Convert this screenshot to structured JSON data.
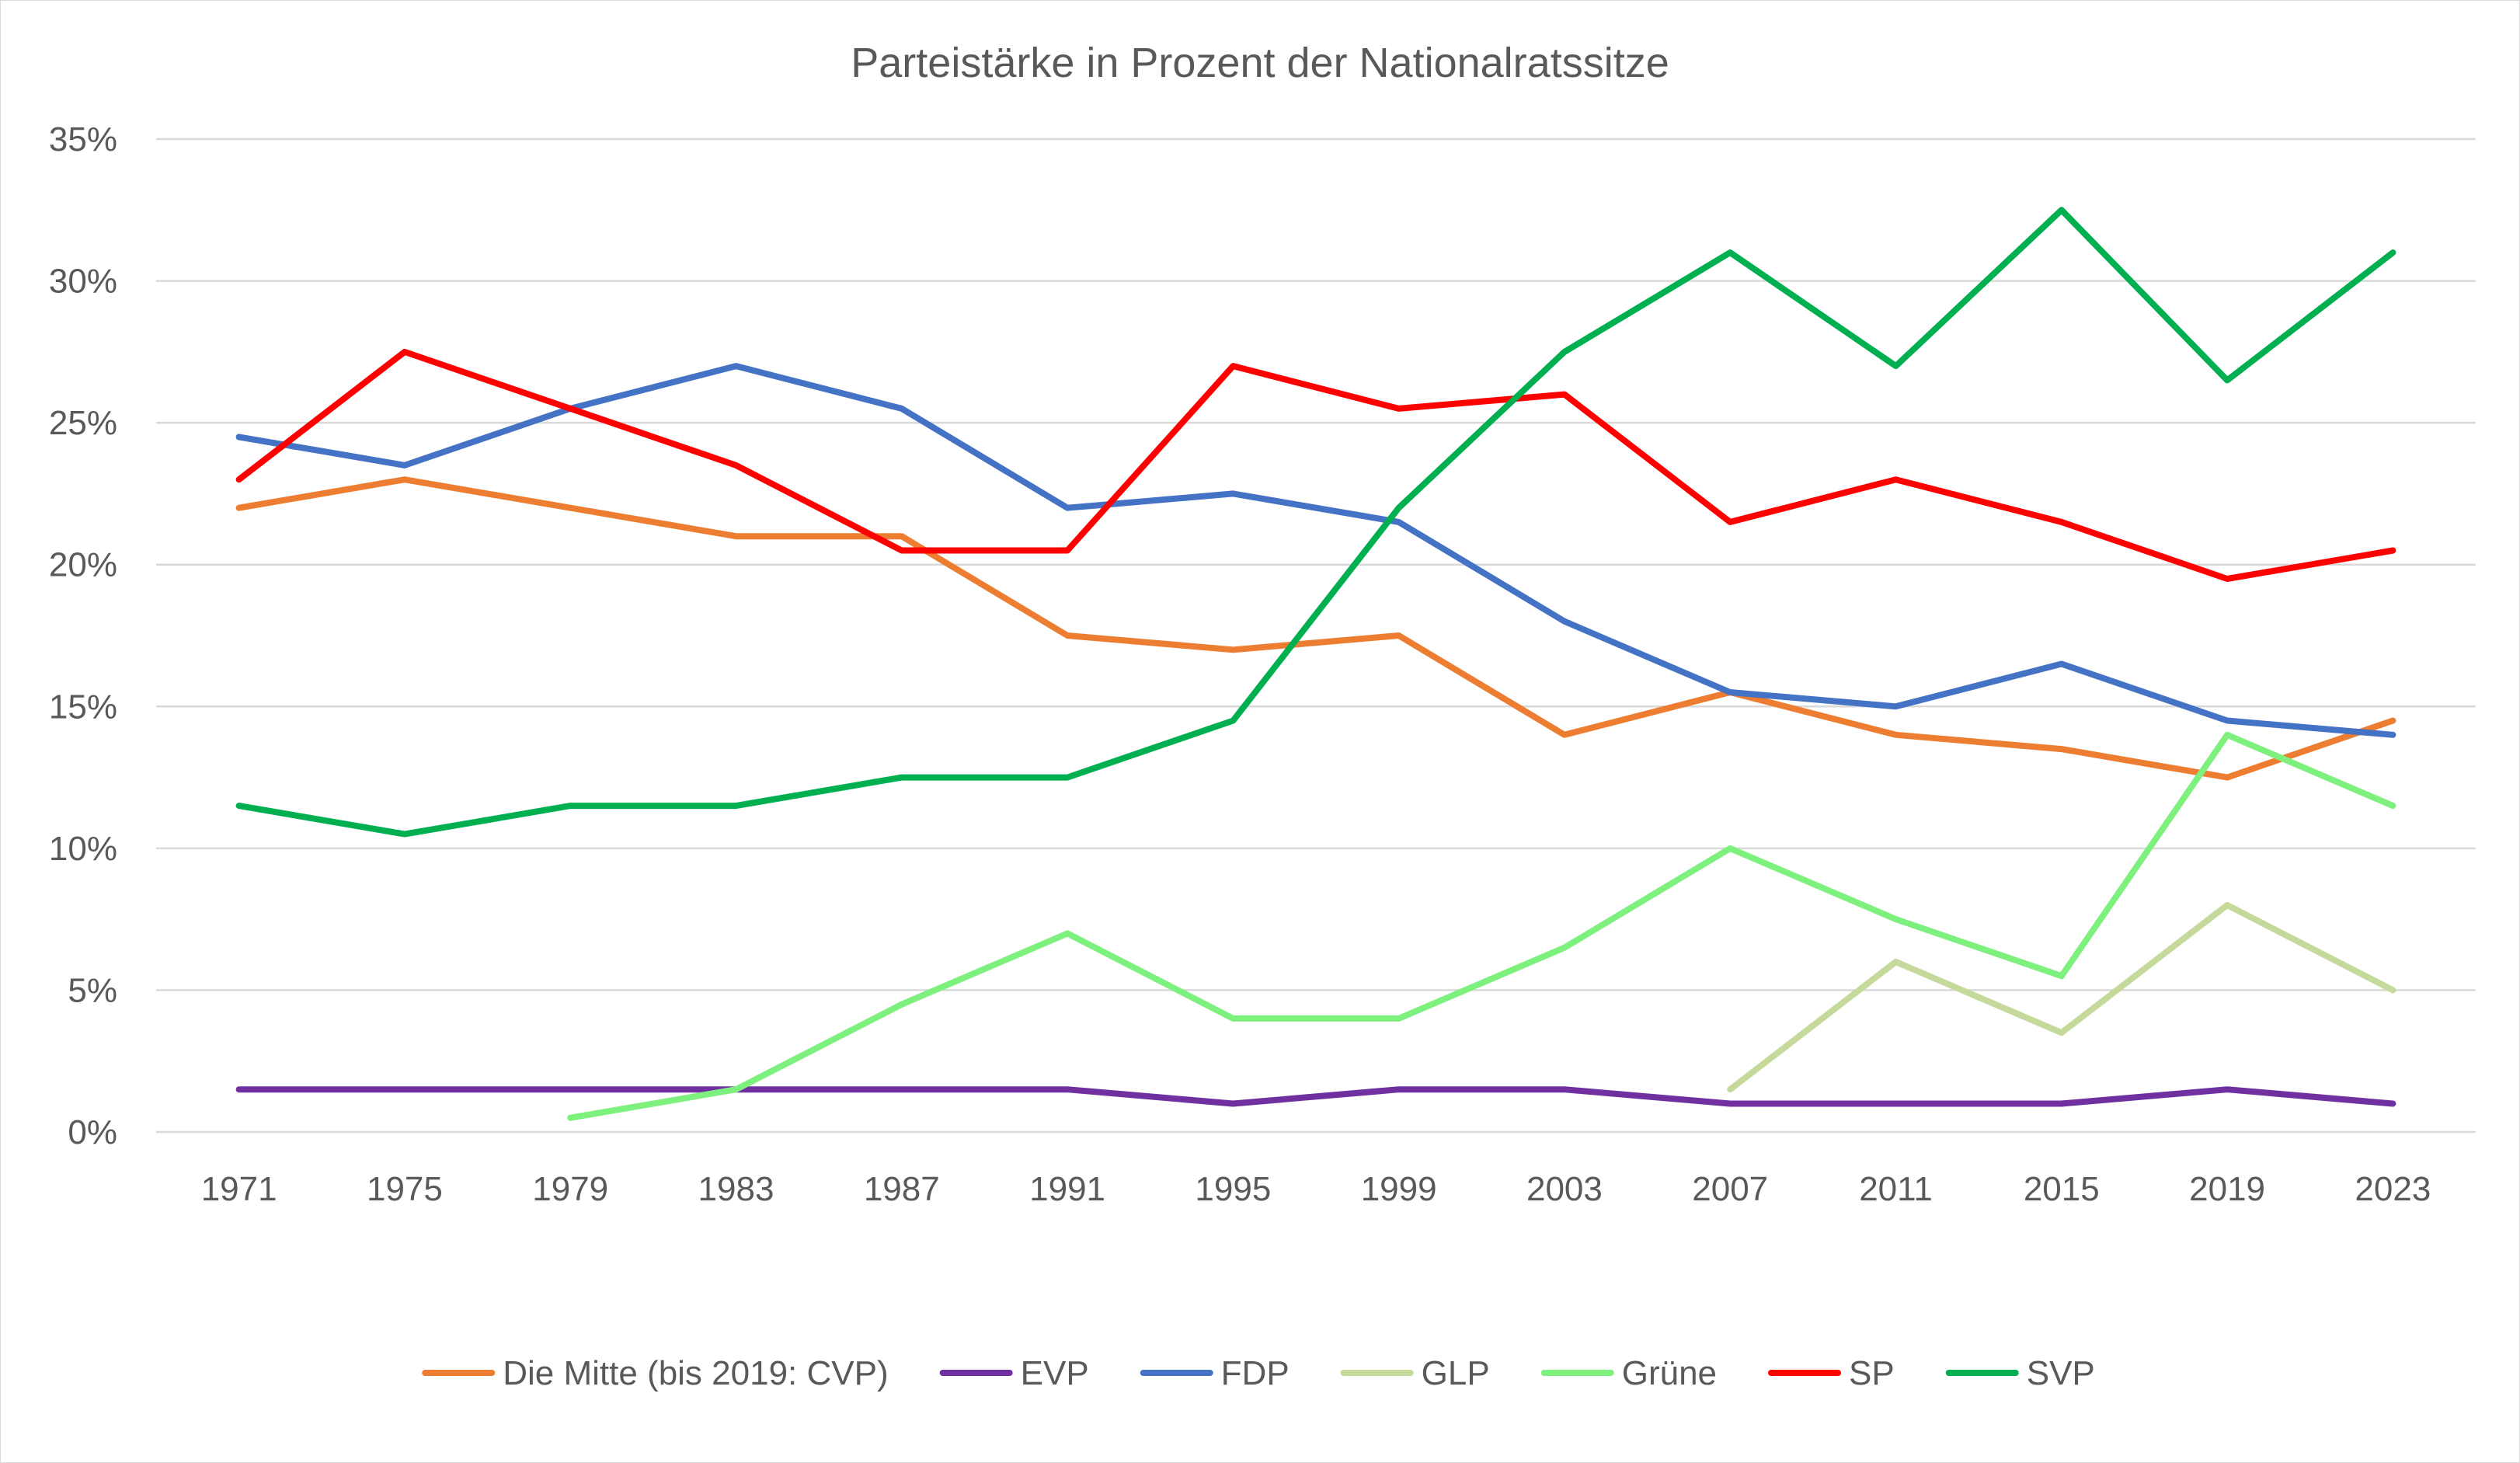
{
  "chart_data": {
    "type": "line",
    "title": "Parteistärke in Prozent der Nationalratssitze",
    "xlabel": "",
    "ylabel": "",
    "categories": [
      "1971",
      "1975",
      "1979",
      "1983",
      "1987",
      "1991",
      "1995",
      "1999",
      "2003",
      "2007",
      "2011",
      "2015",
      "2019",
      "2023"
    ],
    "ylim": [
      0,
      35
    ],
    "yticks": [
      0,
      5,
      10,
      15,
      20,
      25,
      30,
      35
    ],
    "ytick_labels": [
      "0%",
      "5%",
      "10%",
      "15%",
      "20%",
      "25%",
      "30%",
      "35%"
    ],
    "grid": true,
    "legend_position": "bottom",
    "series": [
      {
        "name": "Die Mitte (bis 2019: CVP)",
        "color": "#ED7D31",
        "values": [
          22,
          23,
          22,
          21,
          21,
          17.5,
          17,
          17.5,
          14,
          15.5,
          14,
          13.5,
          12.5,
          14.5
        ]
      },
      {
        "name": "EVP",
        "color": "#7030A0",
        "values": [
          1.5,
          1.5,
          1.5,
          1.5,
          1.5,
          1.5,
          1,
          1.5,
          1.5,
          1,
          1,
          1,
          1.5,
          1
        ]
      },
      {
        "name": "FDP",
        "color": "#4472C4",
        "values": [
          24.5,
          23.5,
          25.5,
          27,
          25.5,
          22,
          22.5,
          21.5,
          18,
          15.5,
          15,
          16.5,
          14.5,
          14
        ]
      },
      {
        "name": "GLP",
        "color": "#C5D99A",
        "values": [
          null,
          null,
          null,
          null,
          null,
          null,
          null,
          null,
          null,
          1.5,
          6,
          3.5,
          8,
          5
        ]
      },
      {
        "name": "Grüne",
        "color": "#7EF07E",
        "values": [
          null,
          null,
          0.5,
          1.5,
          4.5,
          7,
          4,
          4,
          6.5,
          10,
          7.5,
          5.5,
          14,
          11.5
        ]
      },
      {
        "name": "SP",
        "color": "#FF0000",
        "values": [
          23,
          27.5,
          25.5,
          23.5,
          20.5,
          20.5,
          27,
          25.5,
          26,
          21.5,
          23,
          21.5,
          19.5,
          20.5
        ]
      },
      {
        "name": "SVP",
        "color": "#00B050",
        "values": [
          11.5,
          10.5,
          11.5,
          11.5,
          12.5,
          12.5,
          14.5,
          22,
          27.5,
          31,
          27,
          32.5,
          26.5,
          31
        ]
      }
    ]
  }
}
